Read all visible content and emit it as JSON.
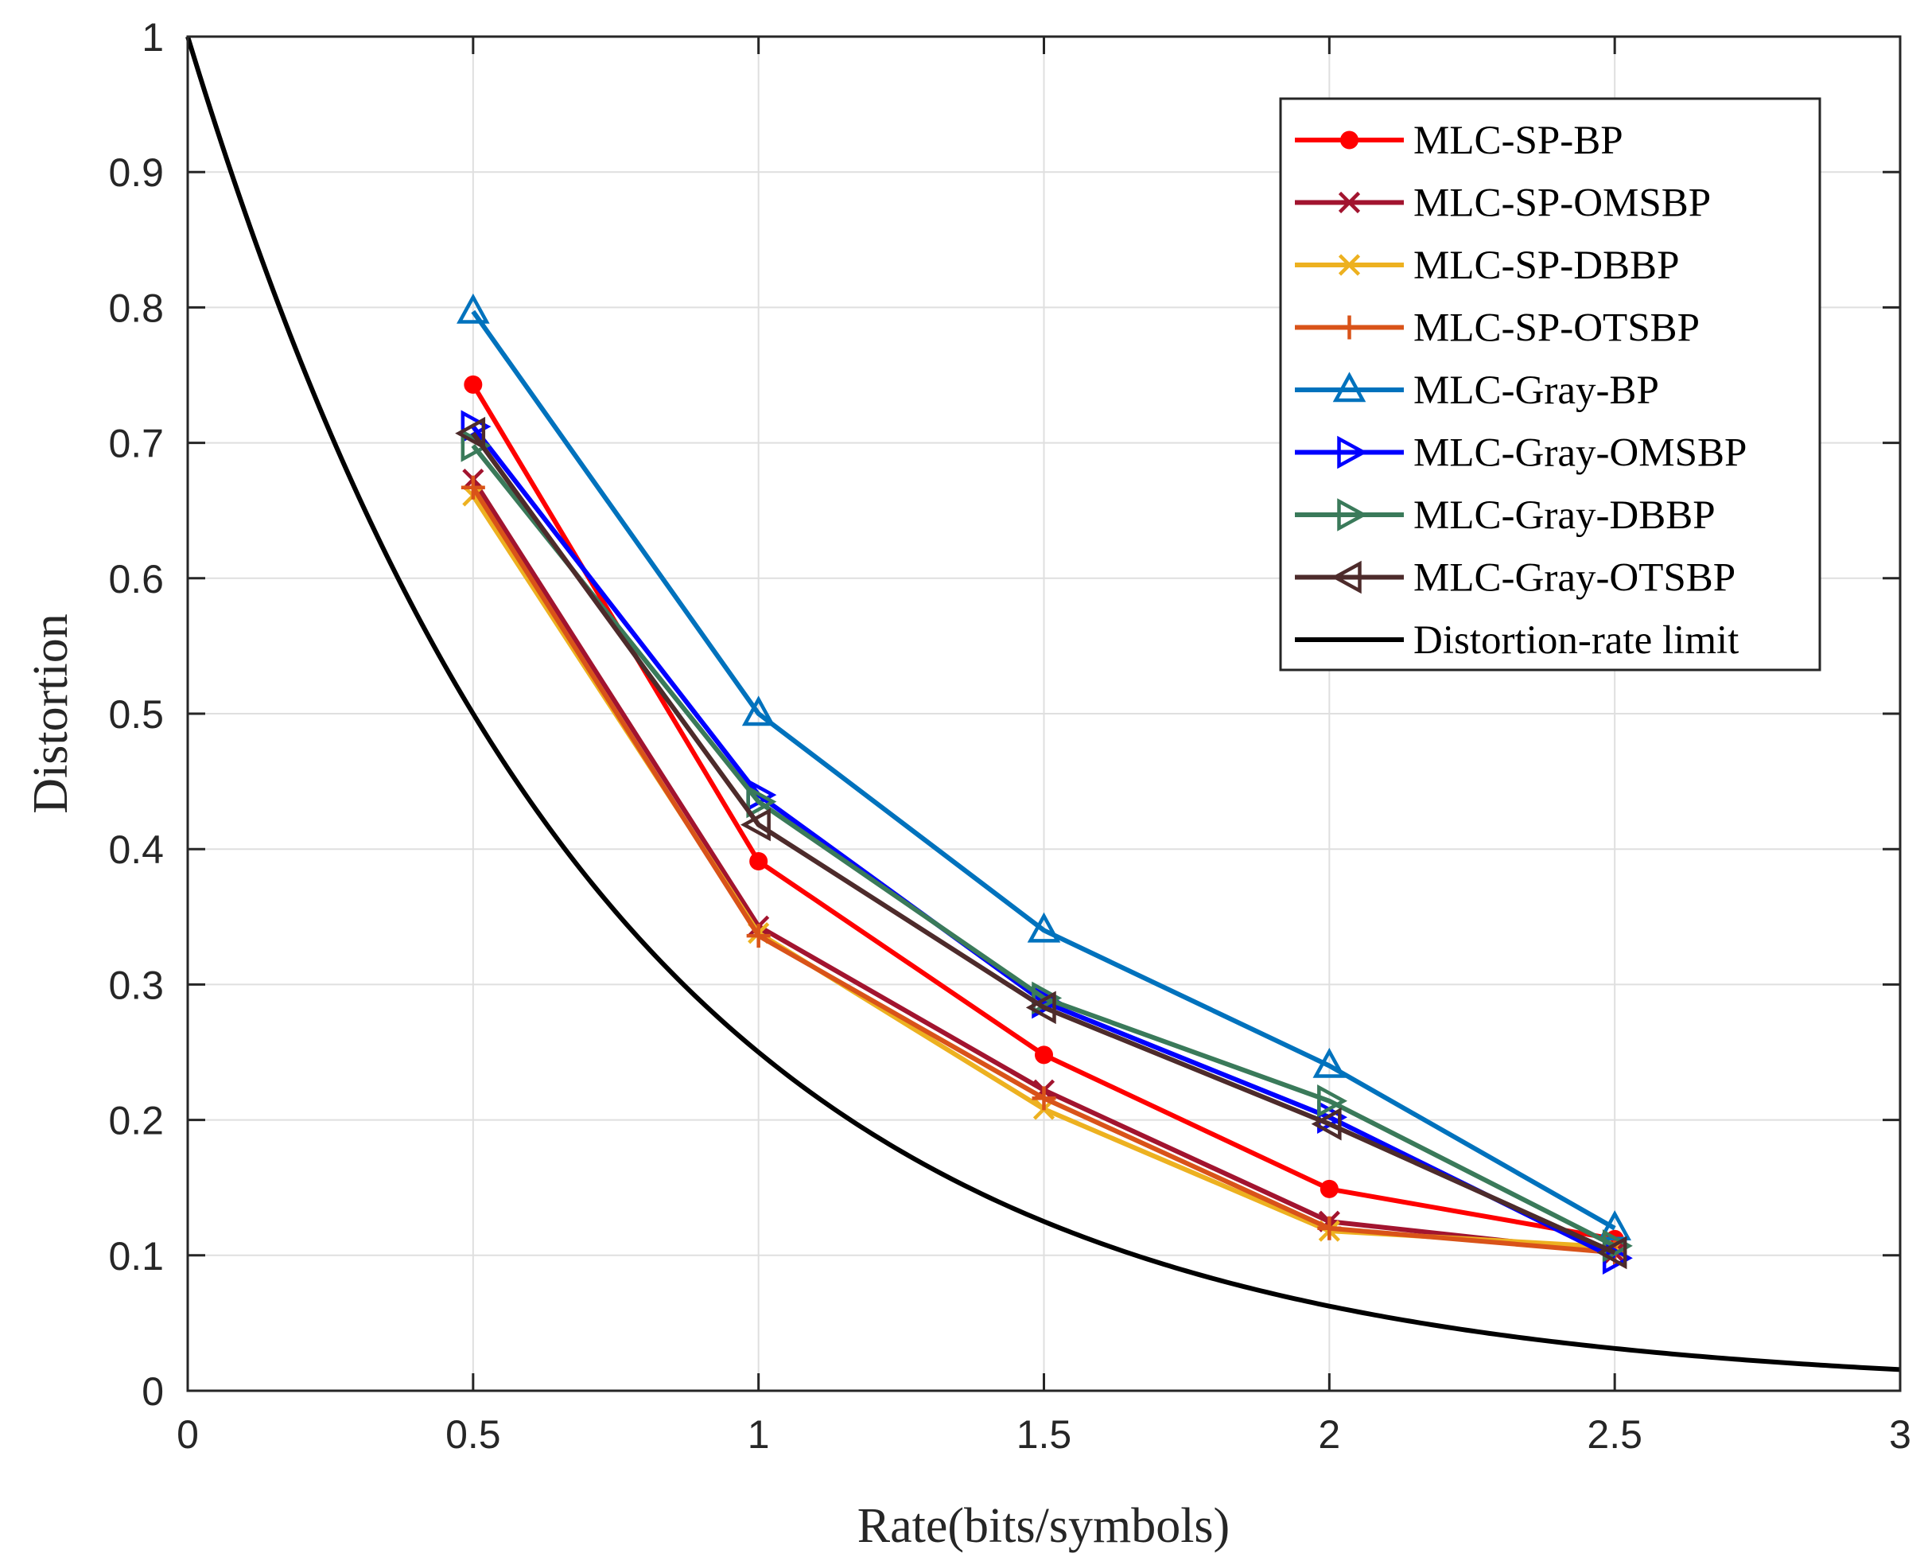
{
  "chart_data": {
    "type": "line",
    "title": "",
    "xlabel": "Rate(bits/symbols)",
    "ylabel": "Distortion",
    "xlim": [
      0,
      3
    ],
    "ylim": [
      0,
      1
    ],
    "xticks": [
      0,
      0.5,
      1,
      1.5,
      2,
      2.5,
      3
    ],
    "xtick_labels": [
      "0",
      "0.5",
      "1",
      "1.5",
      "2",
      "2.5",
      "3"
    ],
    "yticks": [
      0,
      0.1,
      0.2,
      0.3,
      0.4,
      0.5,
      0.6,
      0.7,
      0.8,
      0.9,
      1
    ],
    "ytick_labels": [
      "0",
      "0.1",
      "0.2",
      "0.3",
      "0.4",
      "0.5",
      "0.6",
      "0.7",
      "0.8",
      "0.9",
      "1"
    ],
    "grid": true,
    "legend_position": "top-right",
    "series": [
      {
        "name": "MLC-SP-BP",
        "color": "#ff0000",
        "marker": "asterisk",
        "x": [
          0.5,
          1,
          1.5,
          2,
          2.5
        ],
        "y": [
          0.743,
          0.391,
          0.248,
          0.149,
          0.112
        ]
      },
      {
        "name": "MLC-SP-OMSBP",
        "color": "#a2142f",
        "marker": "x",
        "x": [
          0.5,
          1,
          1.5,
          2,
          2.5
        ],
        "y": [
          0.673,
          0.343,
          0.222,
          0.125,
          0.102
        ]
      },
      {
        "name": "MLC-SP-DBBP",
        "color": "#edb120",
        "marker": "x",
        "x": [
          0.5,
          1,
          1.5,
          2,
          2.5
        ],
        "y": [
          0.661,
          0.338,
          0.208,
          0.118,
          0.106
        ]
      },
      {
        "name": "MLC-SP-OTSBP",
        "color": "#d95319",
        "marker": "plus",
        "x": [
          0.5,
          1,
          1.5,
          2,
          2.5
        ],
        "y": [
          0.667,
          0.336,
          0.216,
          0.12,
          0.102
        ]
      },
      {
        "name": "MLC-Gray-BP",
        "color": "#0072bd",
        "marker": "triangle-up",
        "x": [
          0.5,
          1,
          1.5,
          2,
          2.5
        ],
        "y": [
          0.797,
          0.5,
          0.34,
          0.24,
          0.12
        ]
      },
      {
        "name": "MLC-Gray-OMSBP",
        "color": "#0000ff",
        "marker": "triangle-right",
        "x": [
          0.5,
          1,
          1.5,
          2,
          2.5
        ],
        "y": [
          0.712,
          0.44,
          0.287,
          0.202,
          0.098
        ]
      },
      {
        "name": "MLC-Gray-DBBP",
        "color": "#3a7a5a",
        "marker": "triangle-right",
        "x": [
          0.5,
          1,
          1.5,
          2,
          2.5
        ],
        "y": [
          0.698,
          0.435,
          0.29,
          0.214,
          0.107
        ]
      },
      {
        "name": "MLC-Gray-OTSBP",
        "color": "#4d2b2b",
        "marker": "triangle-left",
        "x": [
          0.5,
          1,
          1.5,
          2,
          2.5
        ],
        "y": [
          0.707,
          0.418,
          0.283,
          0.197,
          0.102
        ]
      }
    ],
    "curve": {
      "name": "Distortion-rate limit",
      "color": "#000000",
      "formula": "2^(-2R)"
    }
  }
}
